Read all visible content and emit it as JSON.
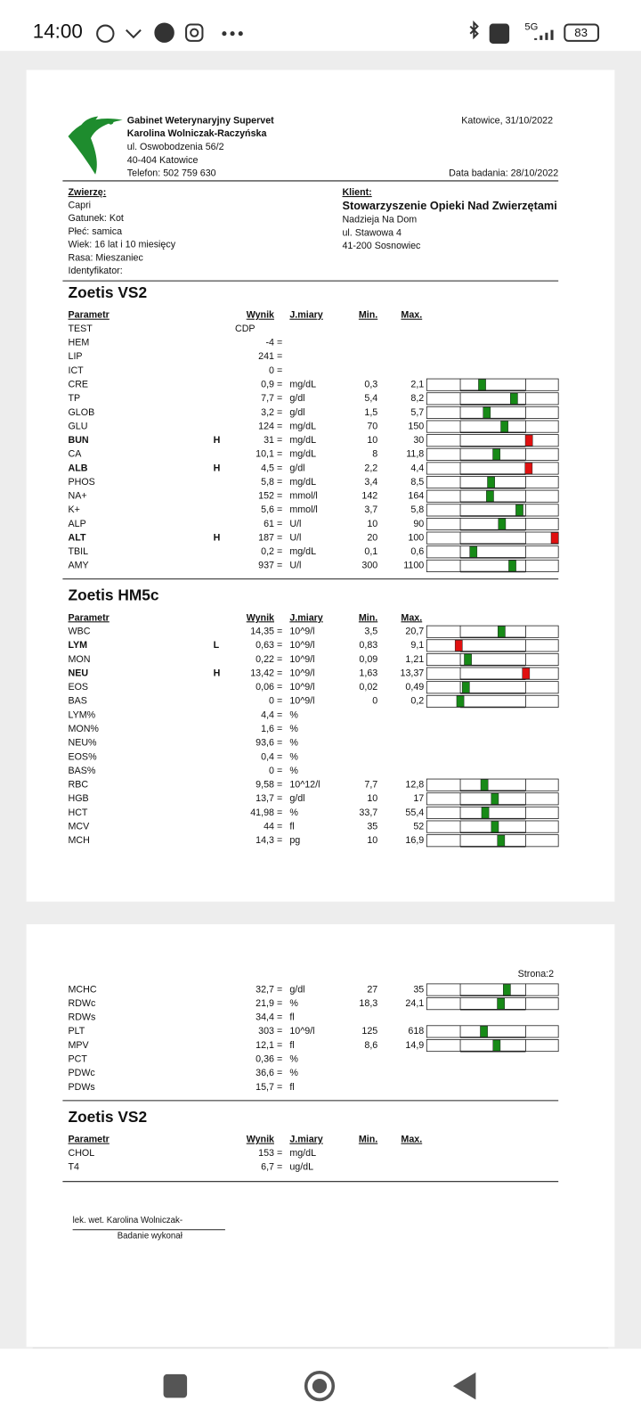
{
  "status": {
    "time": "14:00",
    "network": "5G",
    "battery": "83"
  },
  "header": {
    "clinic": [
      "Gabinet Weterynaryjny Supervet",
      "Karolina Wolniczak-Raczyńska",
      "ul. Oswobodzenia 56/2",
      "40-404 Katowice",
      "Telefon: 502 759 630"
    ],
    "place_date": "Katowice, 31/10/2022",
    "exam_date": "Data badania: 28/10/2022"
  },
  "animal": {
    "label": "Zwierzę:",
    "lines": [
      "Capri",
      "Gatunek: Kot",
      "Płeć: samica",
      "Wiek: 16 lat i 10 miesięcy",
      "Rasa: Mieszaniec",
      "Identyfikator:"
    ]
  },
  "client": {
    "label": "Klient:",
    "name": "Stowarzyszenie Opieki Nad Zwierzętami",
    "lines": [
      "Nadzieja Na Dom",
      "ul. Stawowa 4",
      "41-200 Sosnowiec"
    ]
  },
  "columns": [
    "Parametr",
    "Wynik",
    "J.miary",
    "Min.",
    "Max."
  ],
  "sections": [
    {
      "title": "Zoetis VS2",
      "rows": [
        {
          "name": "TEST",
          "value": "CDP"
        },
        {
          "name": "HEM",
          "value": "-4",
          "eq": "="
        },
        {
          "name": "LIP",
          "value": "241",
          "eq": "="
        },
        {
          "name": "ICT",
          "value": "0",
          "eq": "="
        },
        {
          "name": "CRE",
          "value": "0,9",
          "eq": "=",
          "unit": "mg/dL",
          "min": "0,3",
          "max": "2,1"
        },
        {
          "name": "TP",
          "value": "7,7",
          "eq": "=",
          "unit": "g/dl",
          "min": "5,4",
          "max": "8,2"
        },
        {
          "name": "GLOB",
          "value": "3,2",
          "eq": "=",
          "unit": "g/dl",
          "min": "1,5",
          "max": "5,7"
        },
        {
          "name": "GLU",
          "value": "124",
          "eq": "=",
          "unit": "mg/dL",
          "min": "70",
          "max": "150"
        },
        {
          "name": "BUN",
          "flag": "H",
          "value": "31",
          "eq": "=",
          "unit": "mg/dL",
          "min": "10",
          "max": "30"
        },
        {
          "name": "CA",
          "value": "10,1",
          "eq": "=",
          "unit": "mg/dL",
          "min": "8",
          "max": "11,8"
        },
        {
          "name": "ALB",
          "flag": "H",
          "value": "4,5",
          "eq": "=",
          "unit": "g/dl",
          "min": "2,2",
          "max": "4,4"
        },
        {
          "name": "PHOS",
          "value": "5,8",
          "eq": "=",
          "unit": "mg/dL",
          "min": "3,4",
          "max": "8,5"
        },
        {
          "name": "NA+",
          "value": "152",
          "eq": "=",
          "unit": "mmol/l",
          "min": "142",
          "max": "164"
        },
        {
          "name": "K+",
          "value": "5,6",
          "eq": "=",
          "unit": "mmol/l",
          "min": "3,7",
          "max": "5,8"
        },
        {
          "name": "ALP",
          "value": "61",
          "eq": "=",
          "unit": "U/l",
          "min": "10",
          "max": "90"
        },
        {
          "name": "ALT",
          "flag": "H",
          "value": "187",
          "eq": "=",
          "unit": "U/l",
          "min": "20",
          "max": "100"
        },
        {
          "name": "TBIL",
          "value": "0,2",
          "eq": "=",
          "unit": "mg/dL",
          "min": "0,1",
          "max": "0,6"
        },
        {
          "name": "AMY",
          "value": "937",
          "eq": "=",
          "unit": "U/l",
          "min": "300",
          "max": "1100"
        }
      ]
    },
    {
      "title": "Zoetis HM5c",
      "rows": [
        {
          "name": "WBC",
          "value": "14,35",
          "eq": "=",
          "unit": "10^9/l",
          "min": "3,5",
          "max": "20,7"
        },
        {
          "name": "LYM",
          "flag": "L",
          "value": "0,63",
          "eq": "=",
          "unit": "10^9/l",
          "min": "0,83",
          "max": "9,1"
        },
        {
          "name": "MON",
          "value": "0,22",
          "eq": "=",
          "unit": "10^9/l",
          "min": "0,09",
          "max": "1,21"
        },
        {
          "name": "NEU",
          "flag": "H",
          "value": "13,42",
          "eq": "=",
          "unit": "10^9/l",
          "min": "1,63",
          "max": "13,37"
        },
        {
          "name": "EOS",
          "value": "0,06",
          "eq": "=",
          "unit": "10^9/l",
          "min": "0,02",
          "max": "0,49"
        },
        {
          "name": "BAS",
          "value": "0",
          "eq": "=",
          "unit": "10^9/l",
          "min": "0",
          "max": "0,2"
        },
        {
          "name": "LYM%",
          "value": "4,4",
          "eq": "=",
          "unit": "%"
        },
        {
          "name": "MON%",
          "value": "1,6",
          "eq": "=",
          "unit": "%"
        },
        {
          "name": "NEU%",
          "value": "93,6",
          "eq": "=",
          "unit": "%"
        },
        {
          "name": "EOS%",
          "value": "0,4",
          "eq": "=",
          "unit": "%"
        },
        {
          "name": "BAS%",
          "value": "0",
          "eq": "=",
          "unit": "%"
        },
        {
          "name": "RBC",
          "value": "9,58",
          "eq": "=",
          "unit": "10^12/l",
          "min": "7,7",
          "max": "12,8"
        },
        {
          "name": "HGB",
          "value": "13,7",
          "eq": "=",
          "unit": "g/dl",
          "min": "10",
          "max": "17"
        },
        {
          "name": "HCT",
          "value": "41,98",
          "eq": "=",
          "unit": "%",
          "min": "33,7",
          "max": "55,4"
        },
        {
          "name": "MCV",
          "value": "44",
          "eq": "=",
          "unit": "fl",
          "min": "35",
          "max": "52"
        },
        {
          "name": "MCH",
          "value": "14,3",
          "eq": "=",
          "unit": "pg",
          "min": "10",
          "max": "16,9"
        }
      ]
    },
    {
      "page": "Strona:2",
      "rows": [
        {
          "name": "MCHC",
          "value": "32,7",
          "eq": "=",
          "unit": "g/dl",
          "min": "27",
          "max": "35"
        },
        {
          "name": "RDWc",
          "value": "21,9",
          "eq": "=",
          "unit": "%",
          "min": "18,3",
          "max": "24,1"
        },
        {
          "name": "RDWs",
          "value": "34,4",
          "eq": "=",
          "unit": "fl"
        },
        {
          "name": "PLT",
          "value": "303",
          "eq": "=",
          "unit": "10^9/l",
          "min": "125",
          "max": "618"
        },
        {
          "name": "MPV",
          "value": "12,1",
          "eq": "=",
          "unit": "fl",
          "min": "8,6",
          "max": "14,9"
        },
        {
          "name": "PCT",
          "value": "0,36",
          "eq": "=",
          "unit": "%"
        },
        {
          "name": "PDWc",
          "value": "36,6",
          "eq": "=",
          "unit": "%"
        },
        {
          "name": "PDWs",
          "value": "15,7",
          "eq": "=",
          "unit": "fl"
        }
      ]
    },
    {
      "title": "Zoetis VS2",
      "rows": [
        {
          "name": "CHOL",
          "value": "153",
          "eq": "=",
          "unit": "mg/dL"
        },
        {
          "name": "T4",
          "value": "6,7",
          "eq": "=",
          "unit": "ug/dL"
        }
      ]
    }
  ],
  "signature": {
    "name": "lek. wet. Karolina  Wolniczak-",
    "caption": "Badanie wykonał"
  }
}
